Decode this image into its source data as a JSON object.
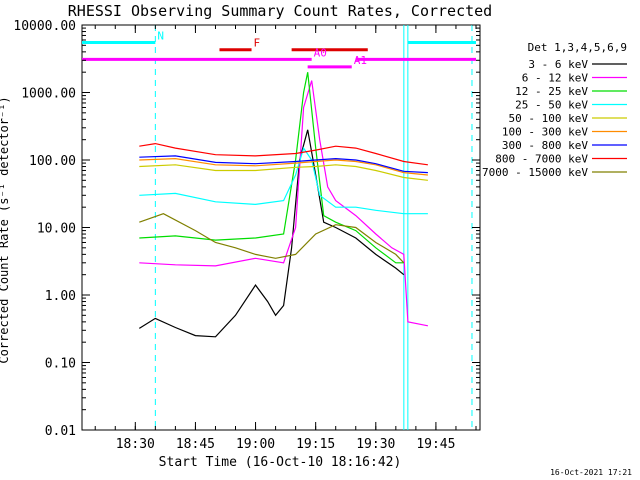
{
  "chart_data": {
    "type": "line",
    "title": "RHESSI Observing Summary Count Rates, Corrected",
    "xlabel": "Start Time (16-Oct-10 18:16:42)",
    "ylabel": "Corrected Count Rate (s⁻¹ detector⁻¹)",
    "y_scale": "log",
    "ylim": [
      0.01,
      10000
    ],
    "xlim": [
      "18:16:42",
      "19:56:00"
    ],
    "x_ticks": [
      "18:30",
      "18:45",
      "19:00",
      "19:15",
      "19:30",
      "19:45"
    ],
    "y_ticks": [
      "10000.00",
      "1000.00",
      "100.00",
      "10.00",
      "1.00",
      "0.10",
      "0.01"
    ],
    "legend_title": "Det 1,3,4,5,6,9",
    "legend_position": "right",
    "footer_date": "16-Oct-2021 17:21",
    "series": [
      {
        "name": "3 - 6 keV",
        "color": "#000000",
        "points": [
          [
            "18:31",
            0.32
          ],
          [
            "18:35",
            0.45
          ],
          [
            "18:40",
            0.33
          ],
          [
            "18:45",
            0.25
          ],
          [
            "18:50",
            0.24
          ],
          [
            "18:55",
            0.5
          ],
          [
            "19:00",
            1.4
          ],
          [
            "19:03",
            0.8
          ],
          [
            "19:05",
            0.5
          ],
          [
            "19:07",
            0.7
          ],
          [
            "19:09",
            5
          ],
          [
            "19:11",
            100
          ],
          [
            "19:13",
            280
          ],
          [
            "19:15",
            60
          ],
          [
            "19:17",
            12
          ],
          [
            "19:20",
            10
          ],
          [
            "19:25",
            7
          ],
          [
            "19:30",
            4
          ],
          [
            "19:35",
            2.5
          ],
          [
            "19:37",
            2
          ]
        ]
      },
      {
        "name": "6 - 12 keV",
        "color": "#ff00ff",
        "points": [
          [
            "18:31",
            3
          ],
          [
            "18:40",
            2.8
          ],
          [
            "18:50",
            2.7
          ],
          [
            "19:00",
            3.5
          ],
          [
            "19:07",
            3
          ],
          [
            "19:10",
            10
          ],
          [
            "19:12",
            600
          ],
          [
            "19:14",
            1500
          ],
          [
            "19:16",
            200
          ],
          [
            "19:18",
            40
          ],
          [
            "19:20",
            25
          ],
          [
            "19:25",
            15
          ],
          [
            "19:30",
            8
          ],
          [
            "19:34",
            5
          ],
          [
            "19:37",
            4
          ],
          [
            "19:38",
            0.4
          ],
          [
            "19:43",
            0.35
          ]
        ]
      },
      {
        "name": "12 - 25 keV",
        "color": "#00dd00",
        "points": [
          [
            "18:31",
            7
          ],
          [
            "18:40",
            7.5
          ],
          [
            "18:50",
            6.5
          ],
          [
            "19:00",
            7
          ],
          [
            "19:07",
            8
          ],
          [
            "19:10",
            100
          ],
          [
            "19:12",
            1000
          ],
          [
            "19:13",
            2000
          ],
          [
            "19:15",
            150
          ],
          [
            "19:17",
            15
          ],
          [
            "19:20",
            12
          ],
          [
            "19:25",
            9
          ],
          [
            "19:30",
            5
          ],
          [
            "19:35",
            3
          ],
          [
            "19:37",
            3
          ]
        ]
      },
      {
        "name": "25 - 50 keV",
        "color": "#00ffff",
        "points": [
          [
            "18:31",
            30
          ],
          [
            "18:40",
            32
          ],
          [
            "18:50",
            24
          ],
          [
            "19:00",
            22
          ],
          [
            "19:07",
            25
          ],
          [
            "19:10",
            60
          ],
          [
            "19:12",
            150
          ],
          [
            "19:14",
            100
          ],
          [
            "19:16",
            30
          ],
          [
            "19:20",
            20
          ],
          [
            "19:25",
            20
          ],
          [
            "19:30",
            18
          ],
          [
            "19:37",
            16
          ],
          [
            "19:43",
            16
          ]
        ]
      },
      {
        "name": "50 - 100 keV",
        "color": "#cccc00",
        "points": [
          [
            "18:31",
            80
          ],
          [
            "18:40",
            85
          ],
          [
            "18:50",
            70
          ],
          [
            "19:00",
            70
          ],
          [
            "19:10",
            78
          ],
          [
            "19:15",
            80
          ],
          [
            "19:20",
            85
          ],
          [
            "19:25",
            80
          ],
          [
            "19:30",
            70
          ],
          [
            "19:37",
            55
          ],
          [
            "19:43",
            50
          ]
        ]
      },
      {
        "name": "100 - 300 keV",
        "color": "#ff8c00",
        "points": [
          [
            "18:31",
            100
          ],
          [
            "18:40",
            105
          ],
          [
            "18:50",
            85
          ],
          [
            "19:00",
            82
          ],
          [
            "19:10",
            90
          ],
          [
            "19:15",
            95
          ],
          [
            "19:20",
            100
          ],
          [
            "19:25",
            95
          ],
          [
            "19:30",
            85
          ],
          [
            "19:37",
            65
          ],
          [
            "19:43",
            60
          ]
        ]
      },
      {
        "name": "300 - 800 keV",
        "color": "#0000ff",
        "points": [
          [
            "18:31",
            110
          ],
          [
            "18:40",
            115
          ],
          [
            "18:50",
            92
          ],
          [
            "19:00",
            88
          ],
          [
            "19:10",
            95
          ],
          [
            "19:15",
            100
          ],
          [
            "19:20",
            105
          ],
          [
            "19:25",
            100
          ],
          [
            "19:30",
            88
          ],
          [
            "19:37",
            68
          ],
          [
            "19:43",
            65
          ]
        ]
      },
      {
        "name": "800 - 7000 keV",
        "color": "#ff0000",
        "points": [
          [
            "18:31",
            160
          ],
          [
            "18:35",
            175
          ],
          [
            "18:40",
            150
          ],
          [
            "18:50",
            120
          ],
          [
            "19:00",
            115
          ],
          [
            "19:10",
            125
          ],
          [
            "19:15",
            140
          ],
          [
            "19:20",
            160
          ],
          [
            "19:25",
            150
          ],
          [
            "19:30",
            125
          ],
          [
            "19:37",
            95
          ],
          [
            "19:43",
            85
          ]
        ]
      },
      {
        "name": "7000 - 15000 keV",
        "color": "#808000",
        "points": [
          [
            "18:31",
            12
          ],
          [
            "18:37",
            16
          ],
          [
            "18:45",
            9
          ],
          [
            "18:50",
            6
          ],
          [
            "18:55",
            5
          ],
          [
            "19:00",
            4
          ],
          [
            "19:05",
            3.5
          ],
          [
            "19:10",
            4
          ],
          [
            "19:15",
            8
          ],
          [
            "19:20",
            11
          ],
          [
            "19:25",
            10
          ],
          [
            "19:30",
            6
          ],
          [
            "19:35",
            4
          ],
          [
            "19:37",
            3
          ]
        ]
      }
    ],
    "annotations": [
      {
        "label": "N",
        "color": "#00ffff",
        "style": "solid",
        "y": 5500,
        "start": "18:16:42",
        "end": "18:35"
      },
      {
        "label": "",
        "color": "#00ffff",
        "style": "solid",
        "y": 5500,
        "start": "19:38",
        "end": "19:55"
      },
      {
        "label": "",
        "color": "#00ffff",
        "style": "dashed_vertical",
        "x": "18:35"
      },
      {
        "label": "",
        "color": "#00ffff",
        "style": "dashed_vertical",
        "x": "19:54"
      },
      {
        "label": "",
        "color": "#00ffff",
        "style": "solid_vertical",
        "x": "19:37"
      },
      {
        "label": "",
        "color": "#00ffff",
        "style": "solid_vertical",
        "x": "19:38"
      },
      {
        "label": "F",
        "color": "#dd0000",
        "style": "solid",
        "y": 4300,
        "start": "18:51",
        "end": "18:59"
      },
      {
        "label": "",
        "color": "#dd0000",
        "style": "solid",
        "y": 4300,
        "start": "19:09",
        "end": "19:28"
      },
      {
        "label": "A0",
        "color": "#ff00ff",
        "style": "solid",
        "y": 3100,
        "start": "18:16:42",
        "end": "19:14"
      },
      {
        "label": "",
        "color": "#ff00ff",
        "style": "solid",
        "y": 3100,
        "start": "19:25",
        "end": "19:55"
      },
      {
        "label": "A1",
        "color": "#ff00ff",
        "style": "solid",
        "y": 2400,
        "start": "19:13",
        "end": "19:24"
      }
    ]
  }
}
